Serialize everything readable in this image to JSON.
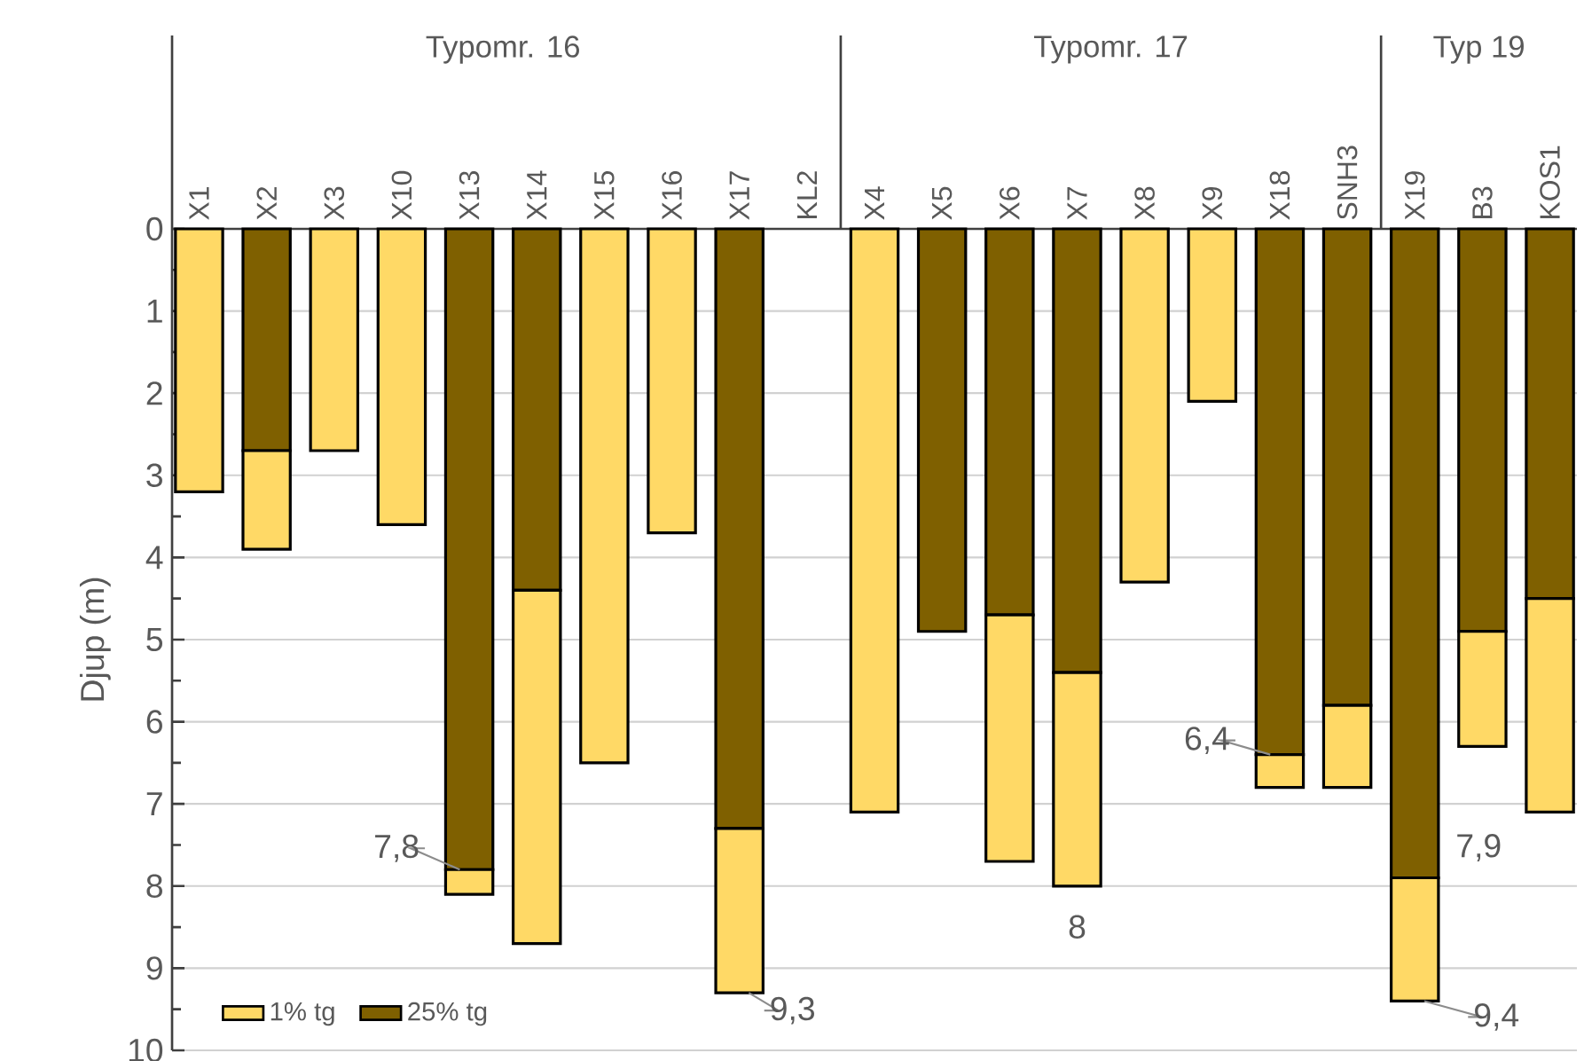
{
  "chart_data": {
    "type": "bar",
    "stacked": true,
    "ylabel": "Djup (m)",
    "categories": [
      "X1",
      "X2",
      "X3",
      "X10",
      "X13",
      "X14",
      "X15",
      "X16",
      "X17",
      "KL2",
      "X4",
      "X5",
      "X6",
      "X7",
      "X8",
      "X9",
      "X18",
      "SNH3",
      "X19",
      "B3",
      "KOS1"
    ],
    "series": [
      {
        "name": "25% tg",
        "color": "#7f6000",
        "values": [
          null,
          2.7,
          null,
          null,
          7.8,
          4.4,
          null,
          null,
          7.3,
          null,
          null,
          4.9,
          4.7,
          5.4,
          null,
          null,
          6.4,
          5.8,
          7.9,
          4.9,
          4.5
        ]
      },
      {
        "name": "1% tg",
        "color": "#ffd966",
        "values": [
          3.2,
          1.2,
          2.7,
          3.6,
          0.3,
          4.3,
          6.5,
          3.7,
          2.0,
          null,
          7.1,
          null,
          3.0,
          2.6,
          4.3,
          2.1,
          0.4,
          1.0,
          1.5,
          1.4,
          2.6
        ]
      }
    ],
    "ylim": [
      10,
      0
    ],
    "yticks": [
      0,
      1,
      2,
      3,
      4,
      5,
      6,
      7,
      8,
      9,
      10
    ],
    "grid": "y",
    "legend": "bottom left",
    "annotations": [
      "Typomr. 16",
      "Typomr. 17",
      "Typ 19",
      {
        "text": "7,8",
        "x": "X13",
        "y": 7.8
      },
      {
        "text": "9,3",
        "x": "X17",
        "y": 9.3
      },
      {
        "text": "8",
        "x": "X7",
        "y": 8
      },
      {
        "text": "6,4",
        "x": "X18",
        "y": 6.4
      },
      {
        "text": "7,9",
        "x": "X19",
        "y": 7.9
      },
      {
        "text": "9,4",
        "x": "X19",
        "y": 9.4
      }
    ]
  }
}
